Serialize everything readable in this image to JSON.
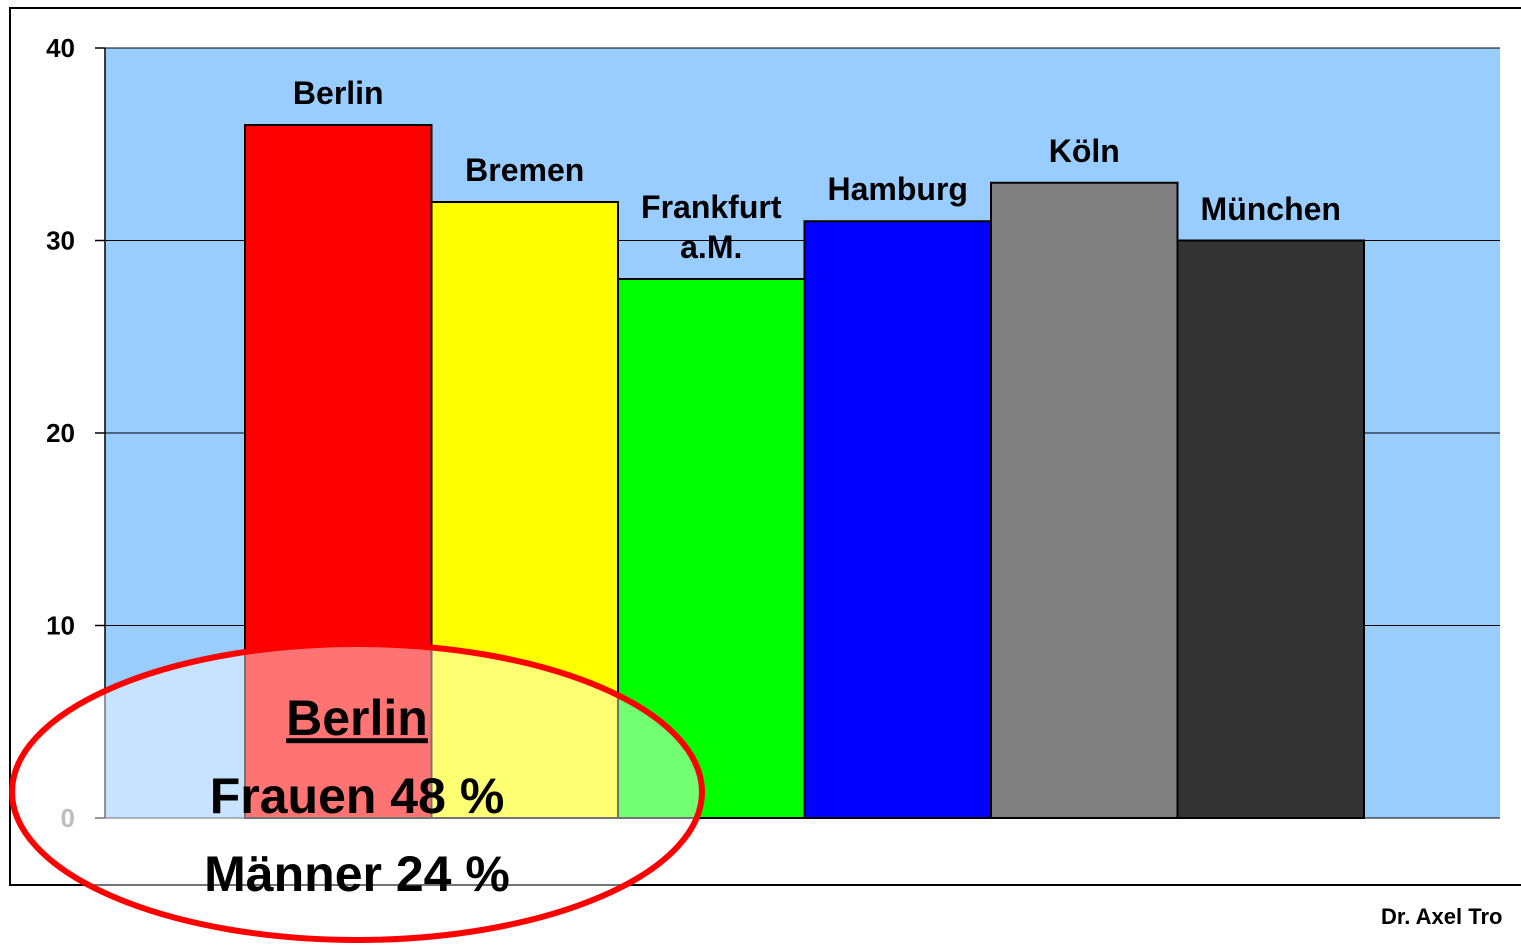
{
  "chart_data": {
    "type": "bar",
    "categories": [
      "Berlin",
      "Bremen",
      "Frankfurt a.M.",
      "Hamburg",
      "Köln",
      "München"
    ],
    "values": [
      36,
      32,
      28,
      31,
      33,
      30
    ],
    "colors": [
      "#ff0000",
      "#ffff00",
      "#00ff00",
      "#0000ff",
      "#808080",
      "#333333"
    ],
    "ylim": [
      0,
      40
    ],
    "yticks": [
      0,
      10,
      20,
      30,
      40
    ],
    "grid": true,
    "annotation": {
      "title": "Berlin",
      "lines": [
        "Frauen 48 %",
        "Männer 24 %"
      ]
    },
    "footer": "Dr. Axel Tro"
  }
}
